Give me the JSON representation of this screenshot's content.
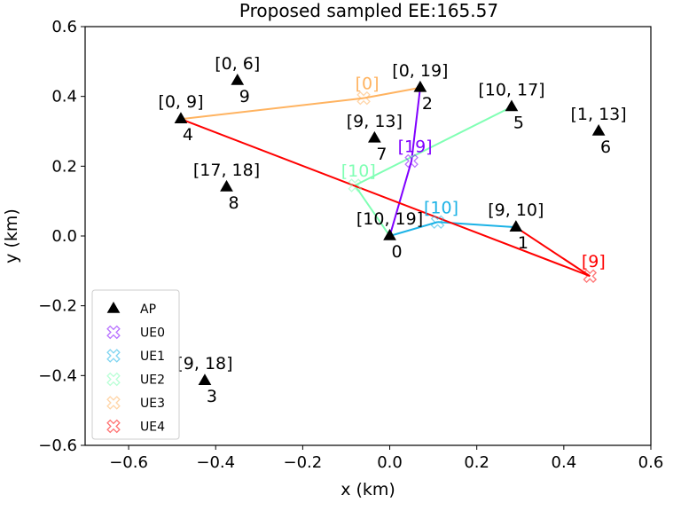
{
  "chart_data": {
    "type": "scatter",
    "title": "Proposed sampled EE:165.57",
    "xlabel": "x (km)",
    "ylabel": "y (km)",
    "xlim": [
      -0.7,
      0.6
    ],
    "ylim": [
      -0.6,
      0.6
    ],
    "xticks": [
      "−0.6",
      "−0.4",
      "−0.2",
      "0.0",
      "0.2",
      "0.4",
      "0.6"
    ],
    "yticks": [
      "−0.6",
      "−0.4",
      "−0.2",
      "0.0",
      "0.2",
      "0.4",
      "0.6"
    ],
    "xtick_values": [
      -0.6,
      -0.4,
      -0.2,
      0.0,
      0.2,
      0.4,
      0.6
    ],
    "ytick_values": [
      -0.6,
      -0.4,
      -0.2,
      0.0,
      0.2,
      0.4,
      0.6
    ],
    "grid": false,
    "legend_position": "lower-left",
    "aps": [
      {
        "id": "0",
        "x": 0.0,
        "y": 0.0,
        "label": "[10, 19]"
      },
      {
        "id": "1",
        "x": 0.29,
        "y": 0.025,
        "label": "[9, 10]"
      },
      {
        "id": "2",
        "x": 0.07,
        "y": 0.425,
        "label": "[0, 19]"
      },
      {
        "id": "3",
        "x": -0.425,
        "y": -0.415,
        "label": "[9, 18]"
      },
      {
        "id": "4",
        "x": -0.48,
        "y": 0.335,
        "label": "[0, 9]"
      },
      {
        "id": "5",
        "x": 0.28,
        "y": 0.37,
        "label": "[10, 17]"
      },
      {
        "id": "6",
        "x": 0.48,
        "y": 0.3,
        "label": "[1, 13]"
      },
      {
        "id": "7",
        "x": -0.035,
        "y": 0.28,
        "label": "[9, 13]"
      },
      {
        "id": "8",
        "x": -0.375,
        "y": 0.14,
        "label": "[17, 18]"
      },
      {
        "id": "9",
        "x": -0.35,
        "y": 0.445,
        "label": "[0, 6]"
      }
    ],
    "ues": [
      {
        "name": "UE0",
        "x": 0.05,
        "y": 0.215,
        "label": "[19]",
        "color": "#8000ff",
        "lines": [
          [
            0.05,
            0.215,
            0.0,
            0.0
          ],
          [
            0.05,
            0.215,
            0.07,
            0.425
          ]
        ]
      },
      {
        "name": "UE1",
        "x": 0.11,
        "y": 0.04,
        "label": "[10]",
        "color": "#1ab2e6",
        "lines": [
          [
            0.11,
            0.04,
            0.0,
            0.0
          ],
          [
            0.11,
            0.04,
            0.29,
            0.025
          ]
        ]
      },
      {
        "name": "UE2",
        "x": -0.08,
        "y": 0.145,
        "label": "[10]",
        "color": "#80ffb4",
        "lines": [
          [
            -0.08,
            0.145,
            0.0,
            0.0
          ],
          [
            -0.08,
            0.145,
            0.28,
            0.37
          ]
        ]
      },
      {
        "name": "UE3",
        "x": -0.06,
        "y": 0.395,
        "label": "[0]",
        "color": "#ffb360",
        "lines": [
          [
            -0.06,
            0.395,
            -0.48,
            0.335
          ],
          [
            -0.06,
            0.395,
            0.07,
            0.425
          ]
        ]
      },
      {
        "name": "UE4",
        "x": 0.46,
        "y": -0.115,
        "label": "[9]",
        "color": "#ff0000",
        "lines": [
          [
            0.46,
            -0.115,
            -0.48,
            0.335
          ],
          [
            0.46,
            -0.115,
            0.29,
            0.025
          ]
        ]
      }
    ],
    "legend": [
      {
        "label": "AP",
        "marker": "triangle",
        "color": "#000000"
      },
      {
        "label": "UE0",
        "marker": "x",
        "color": "#8000ff"
      },
      {
        "label": "UE1",
        "marker": "x",
        "color": "#1ab2e6"
      },
      {
        "label": "UE2",
        "marker": "x",
        "color": "#80ffb4"
      },
      {
        "label": "UE3",
        "marker": "x",
        "color": "#ffb360"
      },
      {
        "label": "UE4",
        "marker": "x",
        "color": "#ff0000"
      }
    ]
  }
}
